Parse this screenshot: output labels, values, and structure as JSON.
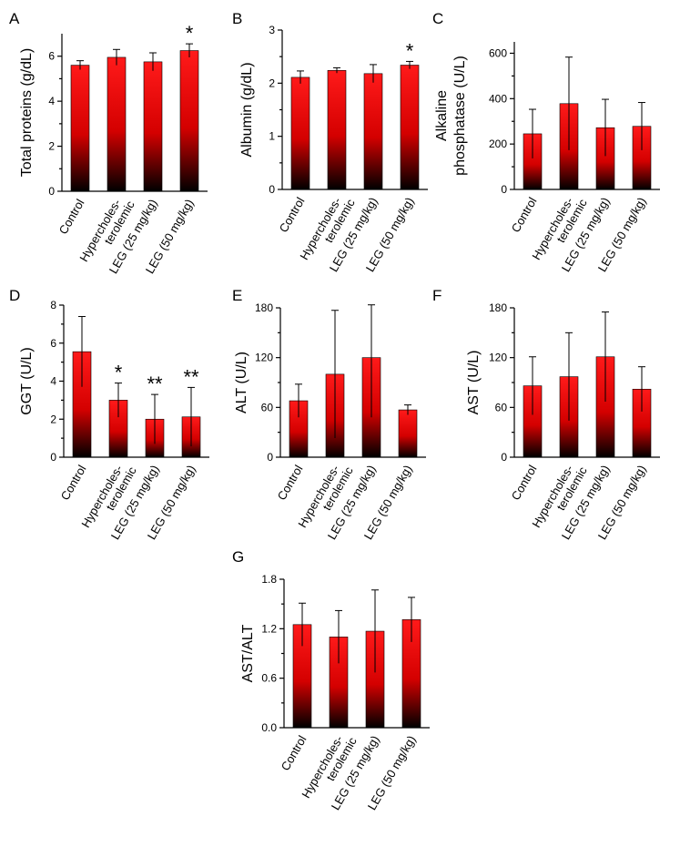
{
  "chart_data": [
    {
      "type": "bar",
      "panel": "A",
      "ylabel": "Total proteins (g/dL)",
      "ylim": [
        0,
        7
      ],
      "yticks": [
        0,
        2,
        4,
        6
      ],
      "categories": [
        "Control",
        "Hypercholes-\nterolemic",
        "LEG (25 mg/kg)",
        "LEG (50 mg/kg)"
      ],
      "values": [
        5.6,
        5.95,
        5.75,
        6.25
      ],
      "errors": [
        0.2,
        0.35,
        0.4,
        0.3
      ],
      "significance": [
        "",
        "",
        "",
        "*"
      ]
    },
    {
      "type": "bar",
      "panel": "B",
      "ylabel": "Albumin (g/dL)",
      "ylim": [
        0,
        3
      ],
      "yticks": [
        0,
        1,
        2,
        3
      ],
      "categories": [
        "Control",
        "Hypercholes-\nterolemic",
        "LEG (25 mg/kg)",
        "LEG (50 mg/kg)"
      ],
      "values": [
        2.11,
        2.24,
        2.18,
        2.34
      ],
      "errors": [
        0.12,
        0.05,
        0.17,
        0.07
      ],
      "significance": [
        "",
        "",
        "",
        "*"
      ]
    },
    {
      "type": "bar",
      "panel": "C",
      "ylabel": "Alkaline\nphosphatase (U/L)",
      "ylim": [
        0,
        650
      ],
      "yticks": [
        0,
        200,
        400,
        600
      ],
      "categories": [
        "Control",
        "Hypercholes-\nterolemic",
        "LEG (25 mg/kg)",
        "LEG (50 mg/kg)"
      ],
      "values": [
        245,
        378,
        272,
        278
      ],
      "errors": [
        108,
        205,
        125,
        105
      ],
      "significance": [
        "",
        "",
        "",
        ""
      ]
    },
    {
      "type": "bar",
      "panel": "D",
      "ylabel": "GGT (U/L)",
      "ylim": [
        0,
        8
      ],
      "yticks": [
        0,
        2,
        4,
        6,
        8
      ],
      "categories": [
        "Control",
        "Hypercholes-\nterolemic",
        "LEG (25 mg/kg)",
        "LEG (50 mg/kg)"
      ],
      "values": [
        5.55,
        3.0,
        2.0,
        2.12
      ],
      "errors": [
        1.85,
        0.9,
        1.3,
        1.55
      ],
      "significance": [
        "",
        "*",
        "**",
        "**"
      ]
    },
    {
      "type": "bar",
      "panel": "E",
      "ylabel": "ALT (U/L)",
      "ylim": [
        0,
        180
      ],
      "yticks": [
        0,
        60,
        120,
        180
      ],
      "categories": [
        "Control",
        "Hypercholes-\nterolemic",
        "LEG (25 mg/kg)",
        "LEG (50 mg/kg)"
      ],
      "values": [
        68,
        100,
        120,
        57
      ],
      "errors": [
        20,
        77,
        72,
        6
      ],
      "significance": [
        "",
        "",
        "",
        ""
      ]
    },
    {
      "type": "bar",
      "panel": "F",
      "ylabel": "AST (U/L)",
      "ylim": [
        0,
        180
      ],
      "yticks": [
        0,
        60,
        120,
        180
      ],
      "categories": [
        "Control",
        "Hypercholes-\nterolemic",
        "LEG (25 mg/kg)",
        "LEG (50 mg/kg)"
      ],
      "values": [
        86,
        97,
        121,
        82
      ],
      "errors": [
        35,
        53,
        54,
        27
      ],
      "significance": [
        "",
        "",
        "",
        ""
      ]
    },
    {
      "type": "bar",
      "panel": "G",
      "ylabel": "AST/ALT",
      "ylim": [
        0,
        1.8
      ],
      "yticks": [
        0.0,
        0.6,
        1.2,
        1.8
      ],
      "tick_decimals": 1,
      "categories": [
        "Control",
        "Hypercholes-\nterolemic",
        "LEG (25 mg/kg)",
        "LEG (50 mg/kg)"
      ],
      "values": [
        1.25,
        1.1,
        1.17,
        1.31
      ],
      "errors": [
        0.26,
        0.32,
        0.5,
        0.27
      ],
      "significance": [
        "",
        "",
        "",
        ""
      ]
    }
  ],
  "colors": {
    "bar_top": "#ff1a1a",
    "bar_mid": "#d40000",
    "bar_bottom": "#000000"
  }
}
